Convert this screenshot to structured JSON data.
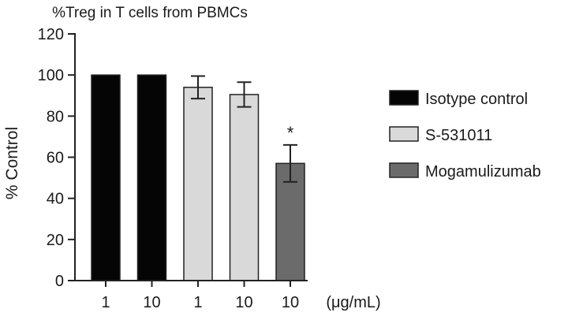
{
  "chart_data": {
    "type": "bar",
    "title": "%Treg in T cells from PBMCs",
    "ylabel": "% Control",
    "xlabel": "",
    "x_unit_label": "(μg/mL)",
    "ylim": [
      0,
      120
    ],
    "yticks": [
      0,
      20,
      40,
      60,
      80,
      100,
      120
    ],
    "categories": [
      "1",
      "10",
      "1",
      "10",
      "10"
    ],
    "bars": [
      {
        "category": "1",
        "series": "Isotype control",
        "value": 100,
        "error": 0,
        "annotation": ""
      },
      {
        "category": "10",
        "series": "Isotype control",
        "value": 100,
        "error": 0,
        "annotation": ""
      },
      {
        "category": "1",
        "series": "S-531011",
        "value": 94,
        "error": 5.5,
        "annotation": ""
      },
      {
        "category": "10",
        "series": "S-531011",
        "value": 90.5,
        "error": 6,
        "annotation": ""
      },
      {
        "category": "10",
        "series": "Mogamulizumab",
        "value": 57,
        "error": 9,
        "annotation": "*"
      }
    ],
    "series": [
      {
        "name": "Isotype control",
        "color": "#050505"
      },
      {
        "name": "S-531011",
        "color": "#d9d9d9"
      },
      {
        "name": "Mogamulizumab",
        "color": "#6b6b6b"
      }
    ],
    "legend_position": "right",
    "grid": false
  }
}
